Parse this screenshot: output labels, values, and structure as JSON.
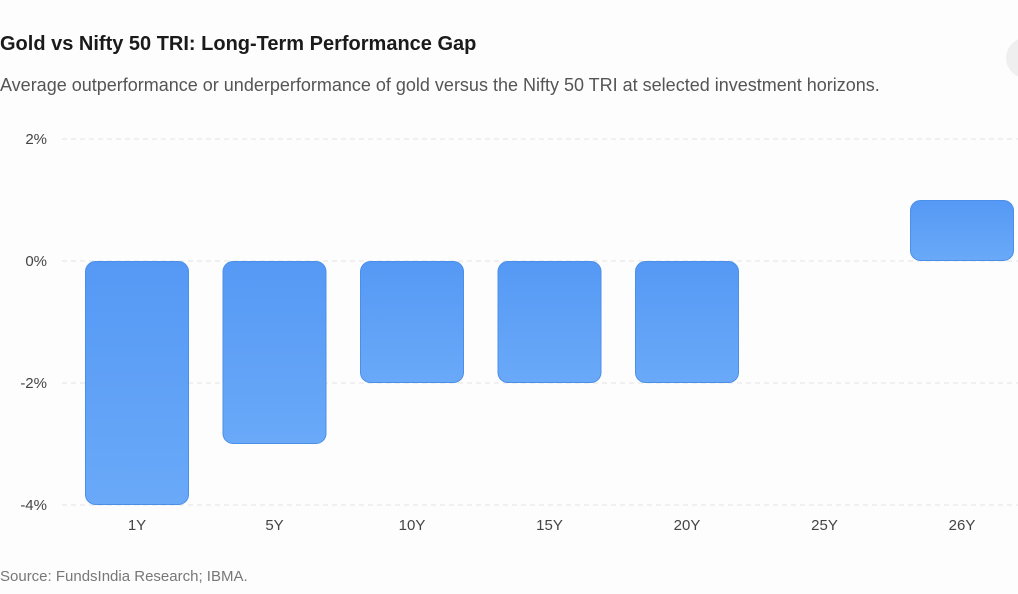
{
  "header": {
    "title": "Gold vs Nifty 50 TRI: Long-Term Performance Gap",
    "subtitle": "Average outperformance or underperformance of gold versus the Nifty 50 TRI at selected investment horizons."
  },
  "footer": {
    "source": "Source: FundsIndia Research; IBMA."
  },
  "chart_data": {
    "type": "bar",
    "categories": [
      "1Y",
      "5Y",
      "10Y",
      "15Y",
      "20Y",
      "25Y",
      "26Y"
    ],
    "values": [
      -4,
      -3,
      -2,
      -2,
      -2,
      0,
      1
    ],
    "y_ticks": [
      2,
      0,
      -2,
      -4
    ],
    "y_tick_labels": [
      "2%",
      "0%",
      "-2%",
      "-4%"
    ],
    "ylim": [
      -4,
      2
    ],
    "grid": true,
    "colors": {
      "bar_top": "#5599f5",
      "bar_bottom": "#6aa9f8",
      "bar_stroke": "#4a8fe8",
      "grid": "#e3e3e3"
    }
  }
}
